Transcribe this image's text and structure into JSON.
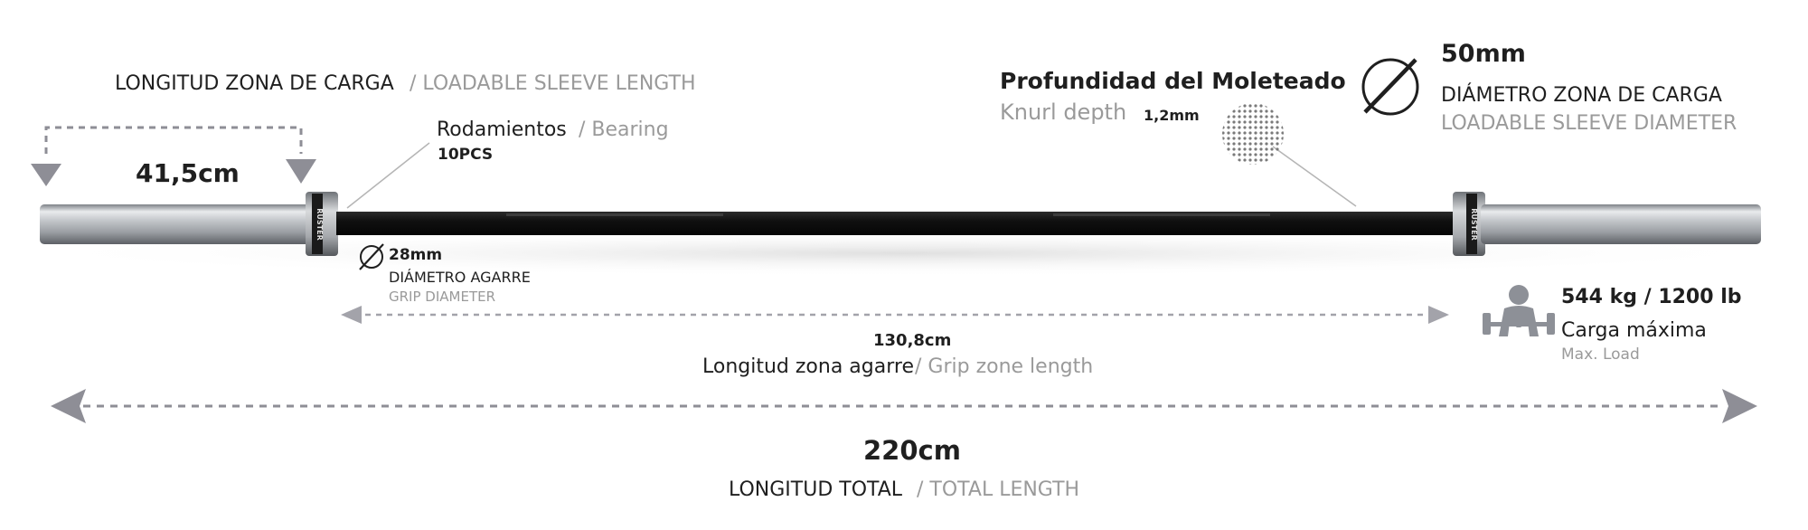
{
  "sleeve_length": {
    "label_es": "LONGITUD ZONA DE CARGA",
    "label_en": "/ LOADABLE SLEEVE LENGTH",
    "value": "41,5cm"
  },
  "bearing": {
    "label_es": "Rodamientos",
    "label_en": "/ Bearing",
    "count": "10PCS"
  },
  "knurl": {
    "title": "Profundidad del Moleteado",
    "label_en": "Knurl depth",
    "value": "1,2mm"
  },
  "sleeve_diameter": {
    "value": "50mm",
    "label_es": "DIÁMETRO ZONA DE CARGA",
    "label_en": "LOADABLE SLEEVE DIAMETER"
  },
  "grip_diameter": {
    "value": "28mm",
    "label_es": "DIÁMETRO AGARRE",
    "label_en": "GRIP DIAMETER"
  },
  "grip_length": {
    "value": "130,8cm",
    "label_es": "Longitud zona agarre",
    "label_en": "/ Grip zone length"
  },
  "max_load": {
    "value": "544 kg / 1200 lb",
    "label_es": "Carga máxima",
    "label_en": "Max. Load"
  },
  "total_length": {
    "value": "220cm",
    "label_es": "LONGITUD TOTAL",
    "label_en": "/ TOTAL LENGTH"
  },
  "collar_brand": "RUSTER",
  "icons": {
    "diameter": "diameter-icon",
    "lifter": "weightlifter-icon",
    "knurl": "knurl-texture-icon"
  },
  "colors": {
    "dark_text": "#1f1f1f",
    "light_text": "#9a9a9a",
    "arrow": "#8e8e96",
    "shaft": "#141414",
    "sleeve": "#b9bcc0"
  }
}
